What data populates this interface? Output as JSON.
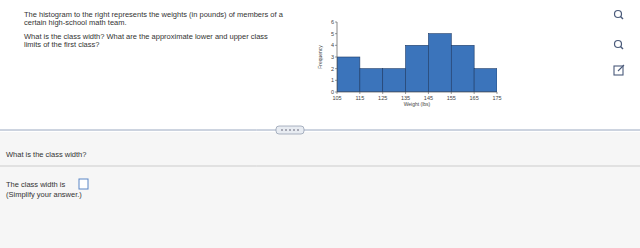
{
  "prompt": [
    "The histogram to the right represents the weights (in pounds) of members of a",
    "certain high-school math team.",
    "What is the class width? What are the approximate lower and upper class",
    "limits of the first class?"
  ],
  "answer_section": {
    "question": "What is the class width?",
    "answer_label": "The class width is",
    "hint": "(Simplify your answer.)"
  },
  "chart_data": {
    "type": "histogram",
    "xlabel": "Weight (lbs)",
    "ylabel": "Frequency",
    "bins": [
      105,
      115,
      125,
      135,
      145,
      155,
      165,
      175
    ],
    "values": [
      3,
      2,
      2,
      4,
      5,
      4,
      2
    ],
    "color": "#3b74bb",
    "xlim": [
      105,
      175
    ],
    "ylim": [
      0,
      6
    ],
    "xticks": [
      105,
      115,
      125,
      135,
      145,
      155,
      165,
      175
    ],
    "yticks": [
      0,
      1,
      2,
      3,
      4,
      5,
      6
    ]
  }
}
